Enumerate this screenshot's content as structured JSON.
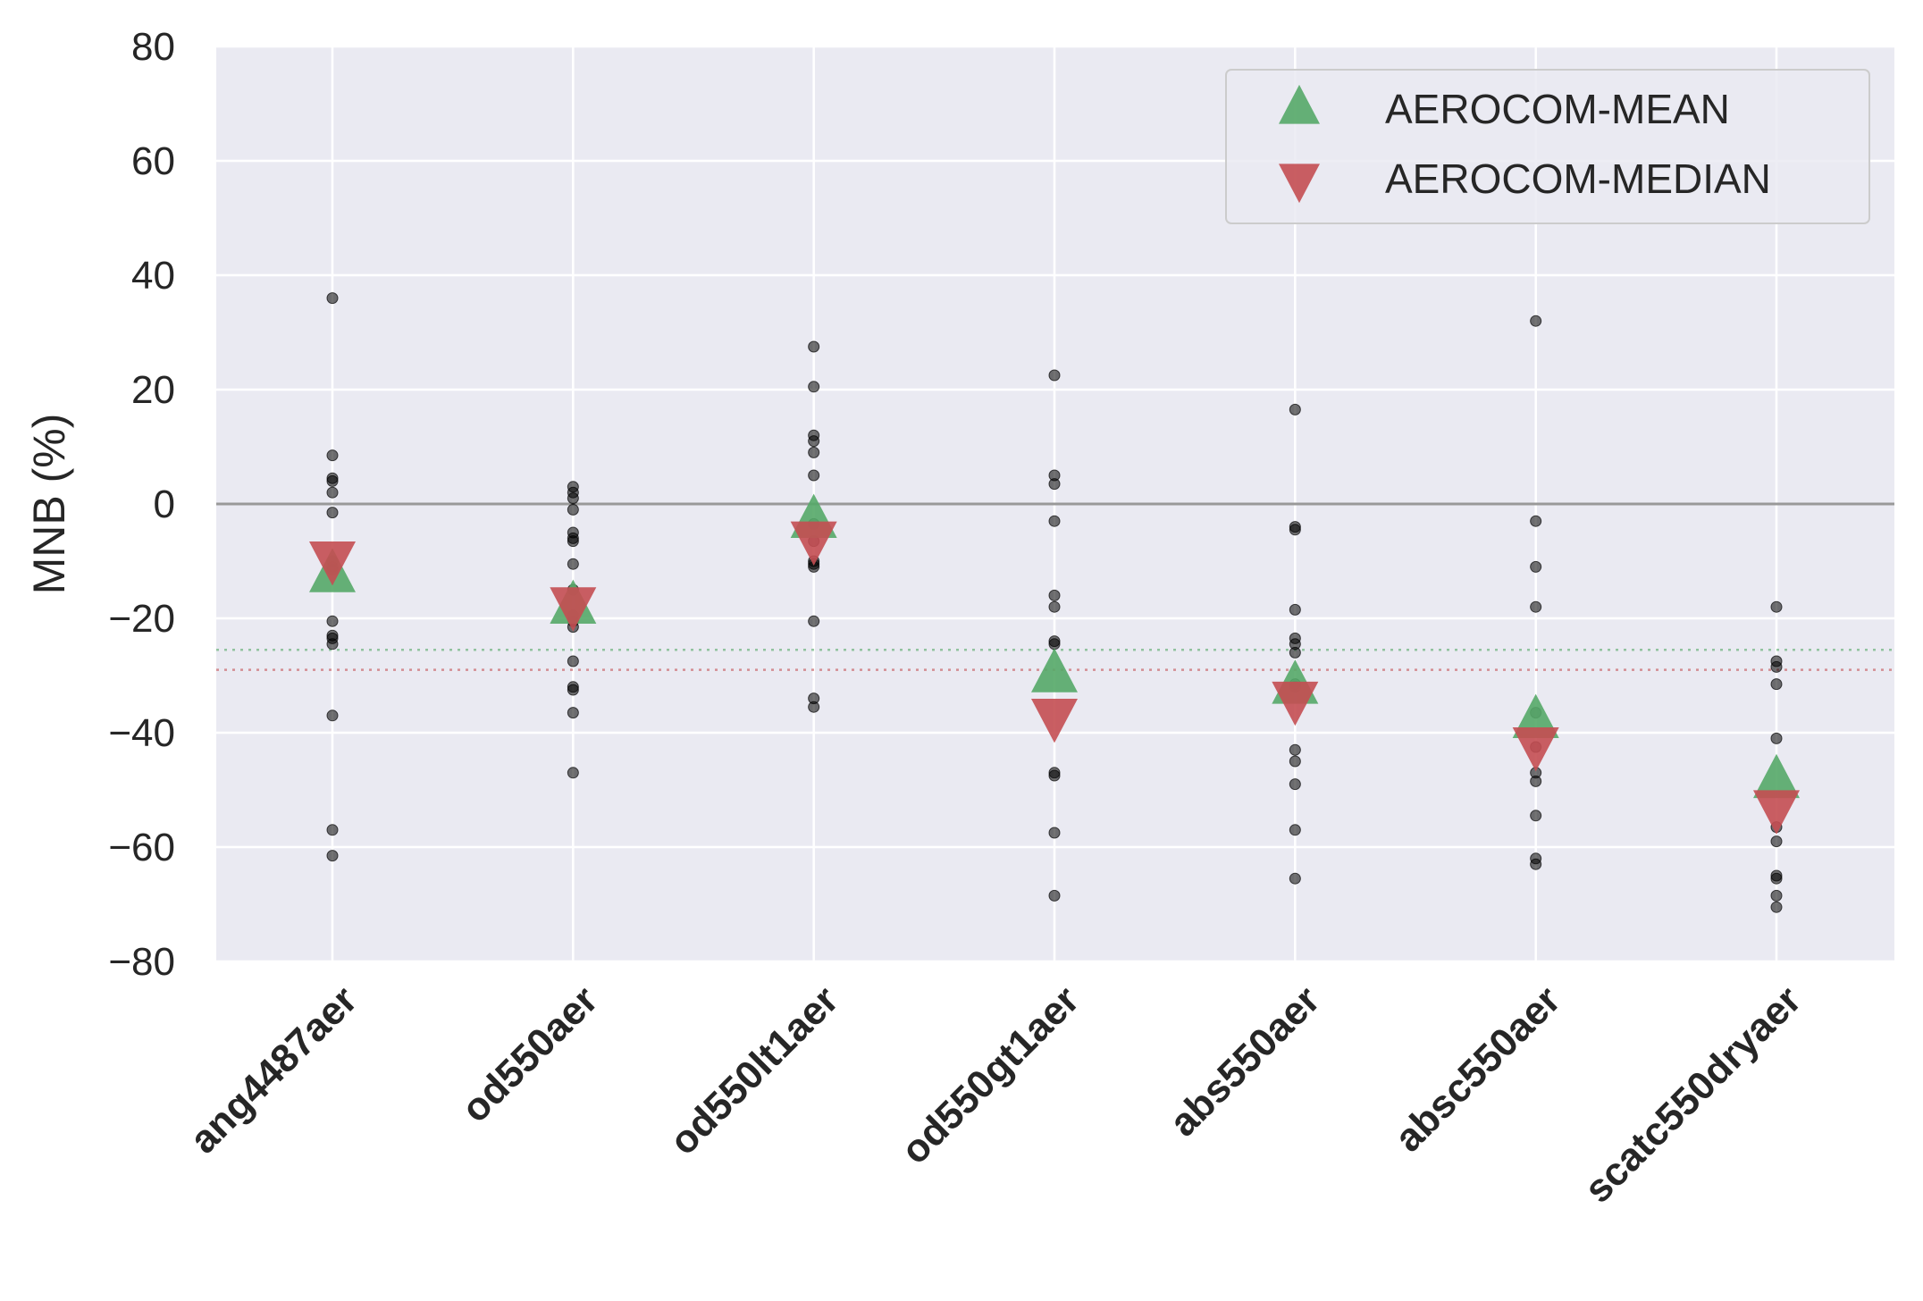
{
  "chart_data": {
    "type": "scatter",
    "title": "",
    "xlabel": "",
    "ylabel": "MNB (%)",
    "ylim": [
      -80,
      80
    ],
    "yticks": [
      80,
      60,
      40,
      20,
      0,
      -20,
      -40,
      -60,
      -80
    ],
    "ytick_labels": [
      "80",
      "60",
      "40",
      "20",
      "0",
      "−20",
      "−40",
      "−60",
      "−80"
    ],
    "categories": [
      "ang4487aer",
      "od550aer",
      "od550lt1aer",
      "od550gt1aer",
      "abs550aer",
      "absc550aer",
      "scatc550dryaer"
    ],
    "grid": true,
    "legend_position": "top-right",
    "zero_line": 0,
    "reference_lines": [
      {
        "value": -25.5,
        "color": "#55a868",
        "style": "dotted"
      },
      {
        "value": -29,
        "color": "#c44e52",
        "style": "dotted"
      }
    ],
    "models": [
      [
        36,
        8.5,
        4.5,
        4,
        2,
        -1.5,
        -10,
        -11,
        -11.5,
        -20.5,
        -23,
        -23.5,
        -24.5,
        -37,
        -57,
        -61.5
      ],
      [
        3,
        2,
        1,
        -1,
        -5,
        -6,
        -6.5,
        -10.5,
        -15,
        -19.5,
        -20.5,
        -21.5,
        -27.5,
        -32,
        -32.5,
        -36.5,
        -47
      ],
      [
        27.5,
        20.5,
        12,
        11,
        9,
        5,
        -3.5,
        -6.5,
        -10,
        -10.5,
        -11,
        -20.5,
        -34,
        -35.5
      ],
      [
        22.5,
        5,
        3.5,
        -3,
        -16,
        -18,
        -24,
        -24.5,
        -47,
        -47.5,
        -57.5,
        -68.5
      ],
      [
        16.5,
        -4,
        -4.5,
        -18.5,
        -23.5,
        -24.5,
        -26,
        -31.5,
        -32,
        -43,
        -45,
        -49,
        -57,
        -65.5
      ],
      [
        32,
        -3,
        -11,
        -18,
        -36.5,
        -42.5,
        -47,
        -48.5,
        -54.5,
        -62,
        -63
      ],
      [
        -18,
        -27.5,
        -28.5,
        -31.5,
        -41,
        -56.5,
        -59,
        -65,
        -65.5,
        -68.5,
        -70.5
      ]
    ],
    "series": [
      {
        "name": "AEROCOM-MEAN",
        "marker": "triangle-up",
        "color": "#55a868",
        "values": [
          -12.5,
          -18,
          -3,
          -30,
          -32,
          -38,
          -48.5
        ]
      },
      {
        "name": "AEROCOM-MEDIAN",
        "marker": "triangle-down",
        "color": "#c44e52",
        "values": [
          -9.5,
          -17.5,
          -6,
          -37,
          -34,
          -42,
          -53
        ]
      }
    ],
    "colors": {
      "background": "#eaeaf2",
      "grid": "#ffffff",
      "zero_line": "#999999",
      "points": "#000000"
    }
  }
}
